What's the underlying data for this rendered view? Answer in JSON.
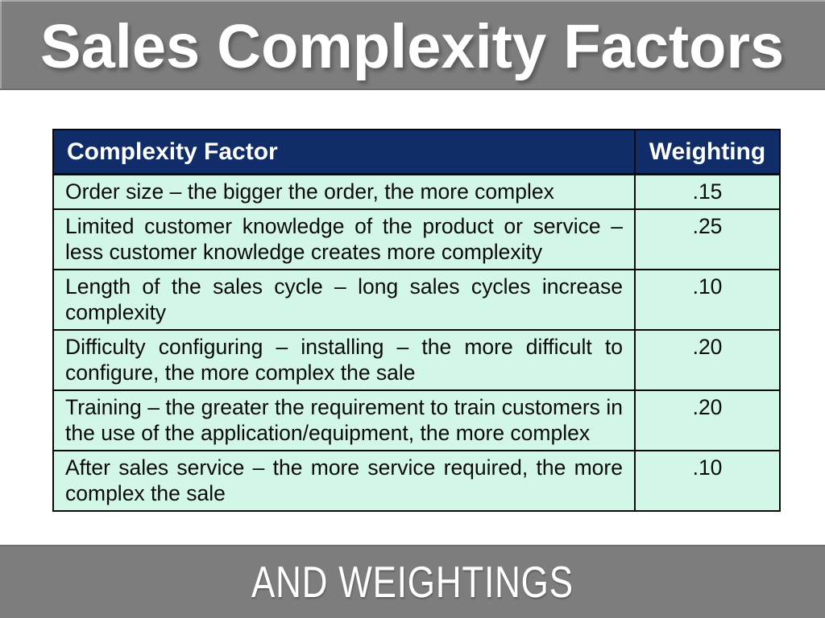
{
  "slide": {
    "title": "Sales Complexity Factors",
    "footer": "AND WEIGHTINGS"
  },
  "table": {
    "headers": [
      "Complexity Factor",
      "Weighting"
    ],
    "rows": [
      {
        "factor": "Order size – the bigger the order, the more complex",
        "weighting": ".15"
      },
      {
        "factor": "Limited customer knowledge of the product or service – less customer knowledge creates more complexity",
        "weighting": ".25"
      },
      {
        "factor": "Length of the sales cycle – long sales cycles increase complexity",
        "weighting": ".10"
      },
      {
        "factor": "Difficulty configuring – installing – the more difficult to configure, the more complex the sale",
        "weighting": ".20"
      },
      {
        "factor": "Training – the greater the requirement to train customers in the use of the application/equipment, the more complex",
        "weighting": ".20"
      },
      {
        "factor": "After sales service – the more service required, the more complex the sale",
        "weighting": ".10"
      }
    ]
  },
  "colors": {
    "banner_gray": "#7d7d7d",
    "banner_edge": "#6d6d6d",
    "header_navy": "#102d6a",
    "row_mint": "#d3f7e7",
    "table_border": "#0a0a0a",
    "title_text": "#ffffff",
    "cell_text": "#0b0b0b"
  }
}
